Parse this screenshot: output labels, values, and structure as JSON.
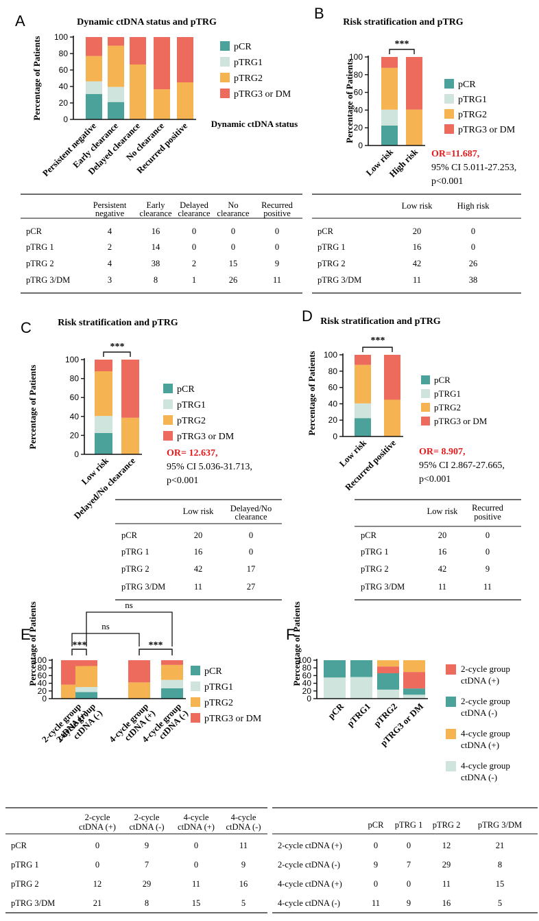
{
  "colors": {
    "pCR": "#4aa29a",
    "pTRG1": "#cfe4dd",
    "pTRG2": "#f5b352",
    "pTRG3": "#ec6b5c",
    "or_red": "#e41a1c"
  },
  "panels": {
    "A": {
      "letter": "A",
      "title": "Dynamic ctDNA status and pTRG",
      "ylabel": "Percentage of Patients",
      "xtitle": "Dynamic ctDNA status"
    },
    "B": {
      "letter": "B",
      "title": "Risk stratification  and pTRG",
      "ylabel": "Percentage of Patients",
      "sig": "***",
      "or_value": "OR=11.687,",
      "or_ci": "95% CI 5.011-27.253,",
      "or_p": "p<0.001"
    },
    "C": {
      "letter": "C",
      "title": "Risk stratification  and pTRG",
      "ylabel": "Percentage of Patients",
      "sig": "***",
      "or_value": "OR= 12.637,",
      "or_ci": "95% CI 5.036-31.713,",
      "or_p": "p<0.001"
    },
    "D": {
      "letter": "D",
      "title": "Risk stratification  and pTRG",
      "ylabel": "Percentage of Patients",
      "sig": "***",
      "or_value": "OR= 8.907,",
      "or_ci": "95% CI 2.867-27.665,",
      "or_p": "p<0.001"
    },
    "E": {
      "letter": "E",
      "ylabel": "Percentage of Patients",
      "sig1": "***",
      "sig2": "***",
      "ns1": "ns",
      "ns2": "ns"
    },
    "F": {
      "letter": "F",
      "ylabel": "Percentage of Patients"
    }
  },
  "legend_std": [
    "pCR",
    "pTRG1",
    "pTRG2",
    "pTRG3 or DM"
  ],
  "legend_f": [
    {
      "l1": "2-cycle group",
      "l2": "ctDNA (+)"
    },
    {
      "l1": "2-cycle group",
      "l2": "ctDNA (-)"
    },
    {
      "l1": "4-cycle group",
      "l2": "ctDNA (+)"
    },
    {
      "l1": "4-cycle group",
      "l2": "ctDNA (-)"
    }
  ],
  "ticks": [
    "0",
    "20",
    "40",
    "60",
    "80",
    "100"
  ],
  "chart_data": [
    {
      "panel": "A",
      "type": "bar",
      "stacked": true,
      "ylim": [
        0,
        100
      ],
      "categories": [
        "Persistent negative",
        "Early clearance",
        "Delayed clearance",
        "No clearance",
        "Recurred positive"
      ],
      "series": [
        {
          "name": "pCR",
          "values": [
            30.8,
            21.1,
            0,
            0,
            0
          ]
        },
        {
          "name": "pTRG1",
          "values": [
            15.4,
            18.4,
            0,
            0,
            0
          ]
        },
        {
          "name": "pTRG2",
          "values": [
            30.8,
            50.0,
            66.7,
            36.6,
            45.0
          ]
        },
        {
          "name": "pTRG3 or DM",
          "values": [
            23.0,
            10.5,
            33.3,
            63.4,
            55.0
          ]
        }
      ]
    },
    {
      "panel": "B",
      "type": "bar",
      "stacked": true,
      "ylim": [
        0,
        100
      ],
      "categories": [
        "Low risk",
        "High risk"
      ],
      "series": [
        {
          "name": "pCR",
          "values": [
            22.5,
            0
          ]
        },
        {
          "name": "pTRG1",
          "values": [
            18.0,
            0
          ]
        },
        {
          "name": "pTRG2",
          "values": [
            47.2,
            40.6
          ]
        },
        {
          "name": "pTRG3 or DM",
          "values": [
            12.3,
            59.4
          ]
        }
      ]
    },
    {
      "panel": "C",
      "type": "bar",
      "stacked": true,
      "ylim": [
        0,
        100
      ],
      "categories": [
        "Low risk",
        "Delayed/No clearance"
      ],
      "series": [
        {
          "name": "pCR",
          "values": [
            22.5,
            0
          ]
        },
        {
          "name": "pTRG1",
          "values": [
            18.0,
            0
          ]
        },
        {
          "name": "pTRG2",
          "values": [
            47.2,
            38.6
          ]
        },
        {
          "name": "pTRG3 or DM",
          "values": [
            12.3,
            61.4
          ]
        }
      ]
    },
    {
      "panel": "D",
      "type": "bar",
      "stacked": true,
      "ylim": [
        0,
        100
      ],
      "categories": [
        "Low risk",
        "Recurred positive"
      ],
      "series": [
        {
          "name": "pCR",
          "values": [
            22.5,
            0
          ]
        },
        {
          "name": "pTRG1",
          "values": [
            18.0,
            0
          ]
        },
        {
          "name": "pTRG2",
          "values": [
            47.2,
            45.0
          ]
        },
        {
          "name": "pTRG3 or DM",
          "values": [
            12.3,
            55.0
          ]
        }
      ]
    },
    {
      "panel": "E",
      "type": "bar",
      "stacked": true,
      "ylim": [
        0,
        100
      ],
      "categories": [
        "2-cycle group ctDNA (+)",
        "2-cycle group ctDNA (-)",
        "4-cycle group ctDNA (+)",
        "4-cycle group ctDNA (-)"
      ],
      "series": [
        {
          "name": "pCR",
          "values": [
            0,
            17.0,
            0,
            26.8
          ]
        },
        {
          "name": "pTRG1",
          "values": [
            0,
            13.2,
            0,
            22.0
          ]
        },
        {
          "name": "pTRG2",
          "values": [
            36.4,
            54.7,
            42.3,
            39.0
          ]
        },
        {
          "name": "pTRG3 or DM",
          "values": [
            63.6,
            15.1,
            57.7,
            12.2
          ]
        }
      ]
    },
    {
      "panel": "F",
      "type": "bar",
      "stacked": true,
      "ylim": [
        0,
        100
      ],
      "categories": [
        "pCR",
        "pTRG1",
        "pTRG2",
        "pTRG3 or DM"
      ],
      "series": [
        {
          "name": "4-cycle group ctDNA (-)",
          "values": [
            55.0,
            56.3,
            23.5,
            10.2
          ]
        },
        {
          "name": "2-cycle group ctDNA (-)",
          "values": [
            45.0,
            43.7,
            42.6,
            16.3
          ]
        },
        {
          "name": "2-cycle group ctDNA (+)",
          "values": [
            0,
            0,
            17.6,
            42.9
          ]
        },
        {
          "name": "4-cycle group ctDNA (+)",
          "values": [
            0,
            0,
            16.2,
            30.6
          ]
        }
      ]
    }
  ],
  "tables": {
    "A": {
      "header": [
        [
          "Persistent",
          "negative"
        ],
        [
          "Early",
          "clearance"
        ],
        [
          "Delayed",
          "clearance"
        ],
        [
          "No",
          "clearance"
        ],
        [
          "Recurred",
          "positive"
        ]
      ],
      "rows": [
        {
          "label": "pCR",
          "values": [
            "4",
            "16",
            "0",
            "0",
            "0"
          ]
        },
        {
          "label": "pTRG 1",
          "values": [
            "2",
            "14",
            "0",
            "0",
            "0"
          ]
        },
        {
          "label": "pTRG 2",
          "values": [
            "4",
            "38",
            "2",
            "15",
            "9"
          ]
        },
        {
          "label": "pTRG 3/DM",
          "values": [
            "3",
            "8",
            "1",
            "26",
            "11"
          ]
        }
      ]
    },
    "B": {
      "header": [
        [
          "Low risk"
        ],
        [
          "High risk"
        ]
      ],
      "rows": [
        {
          "label": "pCR",
          "values": [
            "20",
            "0"
          ]
        },
        {
          "label": "pTRG 1",
          "values": [
            "16",
            "0"
          ]
        },
        {
          "label": "pTRG 2",
          "values": [
            "42",
            "26"
          ]
        },
        {
          "label": "pTRG 3/DM",
          "values": [
            "11",
            "38"
          ]
        }
      ]
    },
    "C": {
      "header": [
        [
          "Low risk"
        ],
        [
          "Delayed/No",
          "clearance"
        ]
      ],
      "rows": [
        {
          "label": "pCR",
          "values": [
            "20",
            "0"
          ]
        },
        {
          "label": "pTRG 1",
          "values": [
            "16",
            "0"
          ]
        },
        {
          "label": "pTRG 2",
          "values": [
            "42",
            "17"
          ]
        },
        {
          "label": "pTRG 3/DM",
          "values": [
            "11",
            "27"
          ]
        }
      ]
    },
    "D": {
      "header": [
        [
          "Low risk"
        ],
        [
          "Recurred",
          "positive"
        ]
      ],
      "rows": [
        {
          "label": "pCR",
          "values": [
            "20",
            "0"
          ]
        },
        {
          "label": "pTRG 1",
          "values": [
            "16",
            "0"
          ]
        },
        {
          "label": "pTRG 2",
          "values": [
            "42",
            "9"
          ]
        },
        {
          "label": "pTRG 3/DM",
          "values": [
            "11",
            "11"
          ]
        }
      ]
    },
    "E": {
      "header": [
        [
          "2-cycle",
          "ctDNA (+)"
        ],
        [
          "2-cycle",
          "ctDNA (-)"
        ],
        [
          "4-cycle",
          "ctDNA (+)"
        ],
        [
          "4-cycle",
          "ctDNA (-)"
        ]
      ],
      "rows": [
        {
          "label": "pCR",
          "values": [
            "0",
            "9",
            "0",
            "11"
          ]
        },
        {
          "label": "pTRG 1",
          "values": [
            "0",
            "7",
            "0",
            "9"
          ]
        },
        {
          "label": "pTRG 2",
          "values": [
            "12",
            "29",
            "11",
            "16"
          ]
        },
        {
          "label": "pTRG 3/DM",
          "values": [
            "21",
            "8",
            "15",
            "5"
          ]
        }
      ]
    },
    "F": {
      "header": [
        [
          "pCR"
        ],
        [
          "pTRG 1"
        ],
        [
          "pTRG 2"
        ],
        [
          "pTRG 3/DM"
        ]
      ],
      "rows": [
        {
          "label": "2-cycle ctDNA (+)",
          "values": [
            "0",
            "0",
            "12",
            "21"
          ]
        },
        {
          "label": "2-cycle ctDNA (-)",
          "values": [
            "9",
            "7",
            "29",
            "8"
          ]
        },
        {
          "label": "4-cycle ctDNA (+)",
          "values": [
            "0",
            "0",
            "11",
            "15"
          ]
        },
        {
          "label": "4-cycle ctDNA (-)",
          "values": [
            "11",
            "9",
            "16",
            "5"
          ]
        }
      ]
    }
  }
}
